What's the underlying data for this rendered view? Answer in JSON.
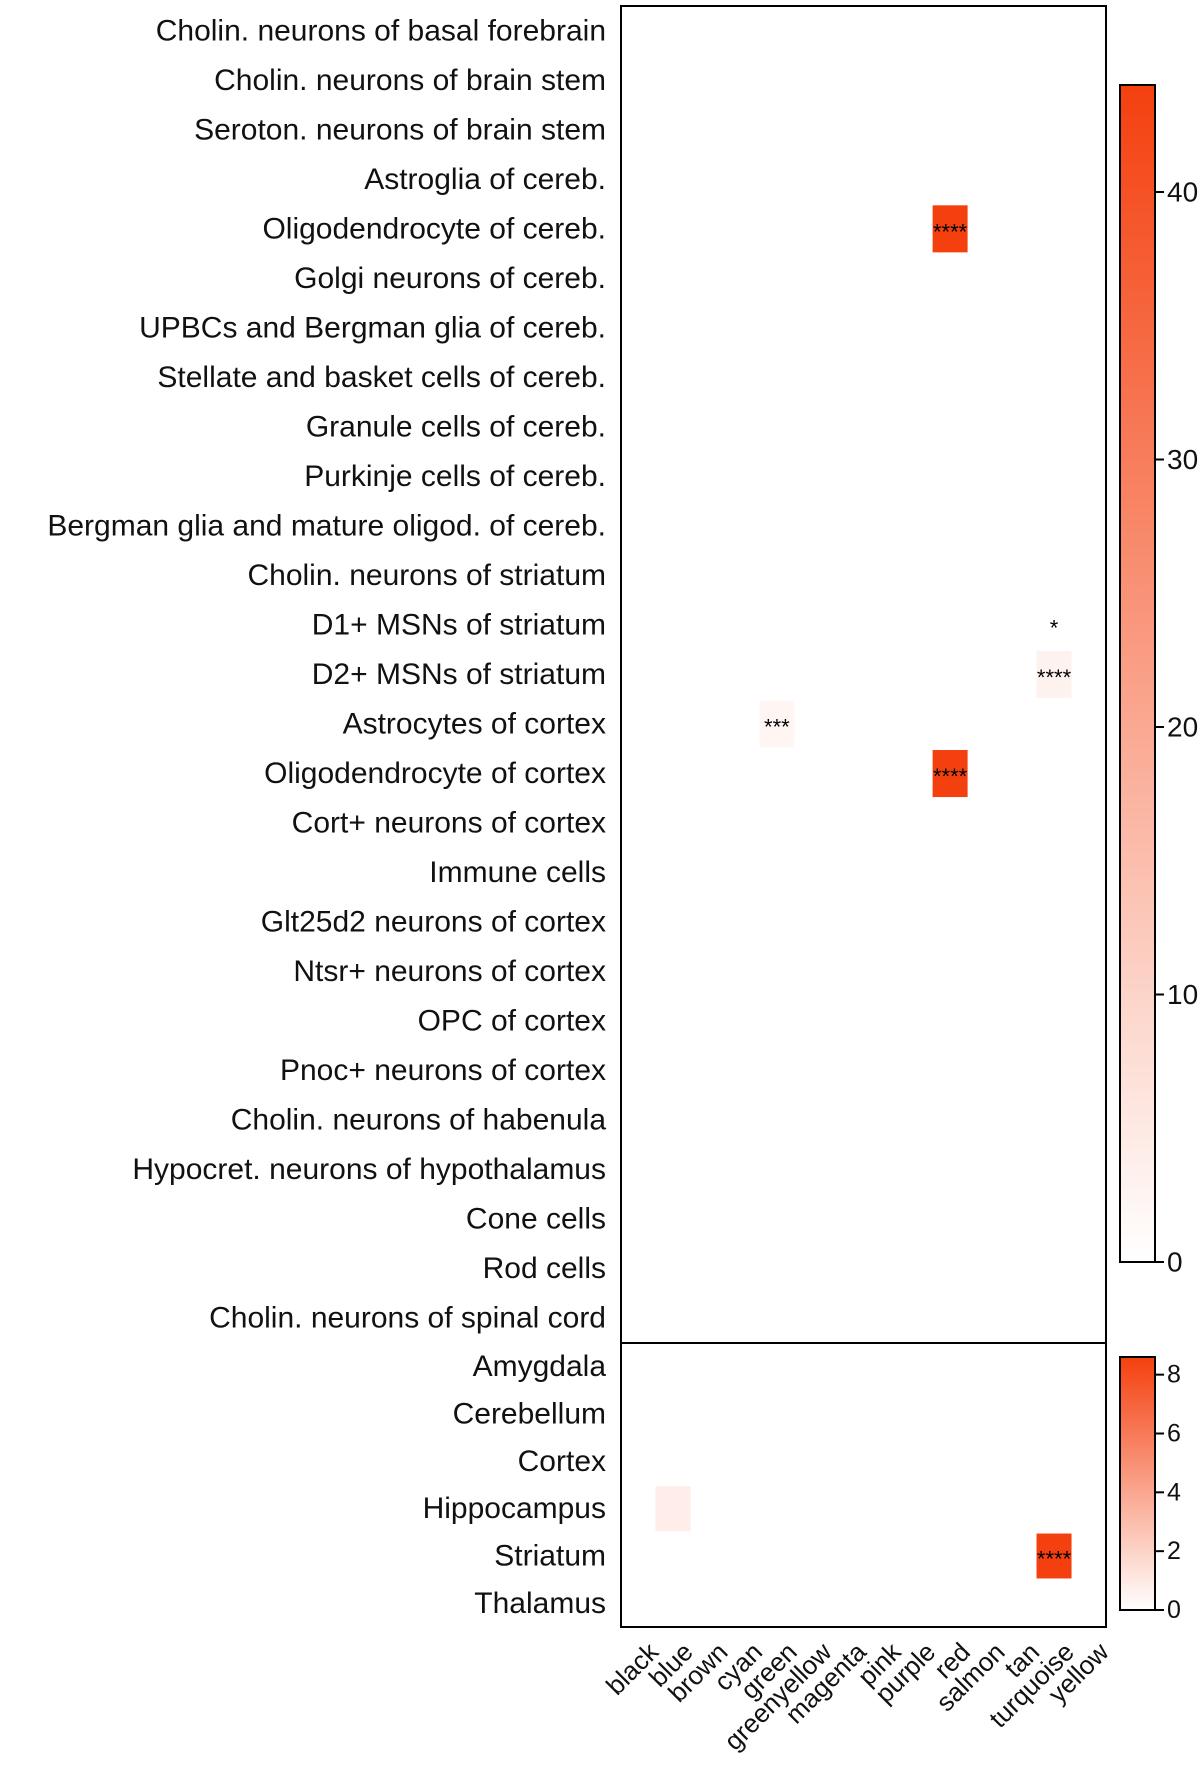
{
  "chart_data": [
    {
      "type": "heatmap",
      "panel": "cell types",
      "title": "",
      "xlabel": "",
      "ylabel": "",
      "columns": [
        "black",
        "blue",
        "brown",
        "cyan",
        "green",
        "greenyellow",
        "magenta",
        "pink",
        "purple",
        "red",
        "salmon",
        "tan",
        "turquoise",
        "yellow"
      ],
      "rows": [
        "Cholin. neurons of basal forebrain",
        "Cholin. neurons of brain stem",
        "Seroton. neurons of brain stem",
        "Astroglia of cereb.",
        "Oligodendrocyte of cereb.",
        "Golgi neurons of cereb.",
        "UPBCs and Bergman glia of cereb.",
        "Stellate and basket cells of cereb.",
        "Granule cells of cereb.",
        "Purkinje cells of cereb.",
        "Bergman glia and mature oligod. of cereb.",
        "Cholin. neurons of striatum",
        "D1+ MSNs of striatum",
        "D2+ MSNs of striatum",
        "Astrocytes of cortex",
        "Oligodendrocyte of cortex",
        "Cort+ neurons of cortex",
        "Immune cells",
        "Glt25d2 neurons of cortex",
        "Ntsr+ neurons of cortex",
        "OPC of cortex",
        "Pnoc+ neurons of cortex",
        "Cholin. neurons of habenula",
        "Hypocret. neurons of hypothalamus",
        "Cone cells",
        "Rod cells",
        "Cholin. neurons of spinal cord"
      ],
      "cells": [
        {
          "row": 4,
          "col": 9,
          "value": 44,
          "label": "****"
        },
        {
          "row": 12,
          "col": 12,
          "value": 0,
          "label": "*"
        },
        {
          "row": 13,
          "col": 12,
          "value": 3,
          "label": "****"
        },
        {
          "row": 14,
          "col": 4,
          "value": 2,
          "label": "***"
        },
        {
          "row": 15,
          "col": 9,
          "value": 44,
          "label": "****"
        }
      ],
      "colorbar": {
        "min": 0,
        "max": 44,
        "ticks": [
          0,
          10,
          20,
          30,
          40
        ],
        "low_color": "#ffffff",
        "high_color": "#f4400f"
      }
    },
    {
      "type": "heatmap",
      "panel": "brain regions",
      "title": "",
      "xlabel": "",
      "ylabel": "",
      "columns": [
        "black",
        "blue",
        "brown",
        "cyan",
        "green",
        "greenyellow",
        "magenta",
        "pink",
        "purple",
        "red",
        "salmon",
        "tan",
        "turquoise",
        "yellow"
      ],
      "rows": [
        "Amygdala",
        "Cerebellum",
        "Cortex",
        "Hippocampus",
        "Striatum",
        "Thalamus"
      ],
      "cells": [
        {
          "row": 3,
          "col": 1,
          "value": 0.8,
          "label": ""
        },
        {
          "row": 4,
          "col": 12,
          "value": 8.6,
          "label": "****"
        }
      ],
      "colorbar": {
        "min": 0,
        "max": 8.6,
        "ticks": [
          0,
          2,
          4,
          6,
          8
        ],
        "low_color": "#ffffff",
        "high_color": "#f4400f"
      }
    }
  ]
}
